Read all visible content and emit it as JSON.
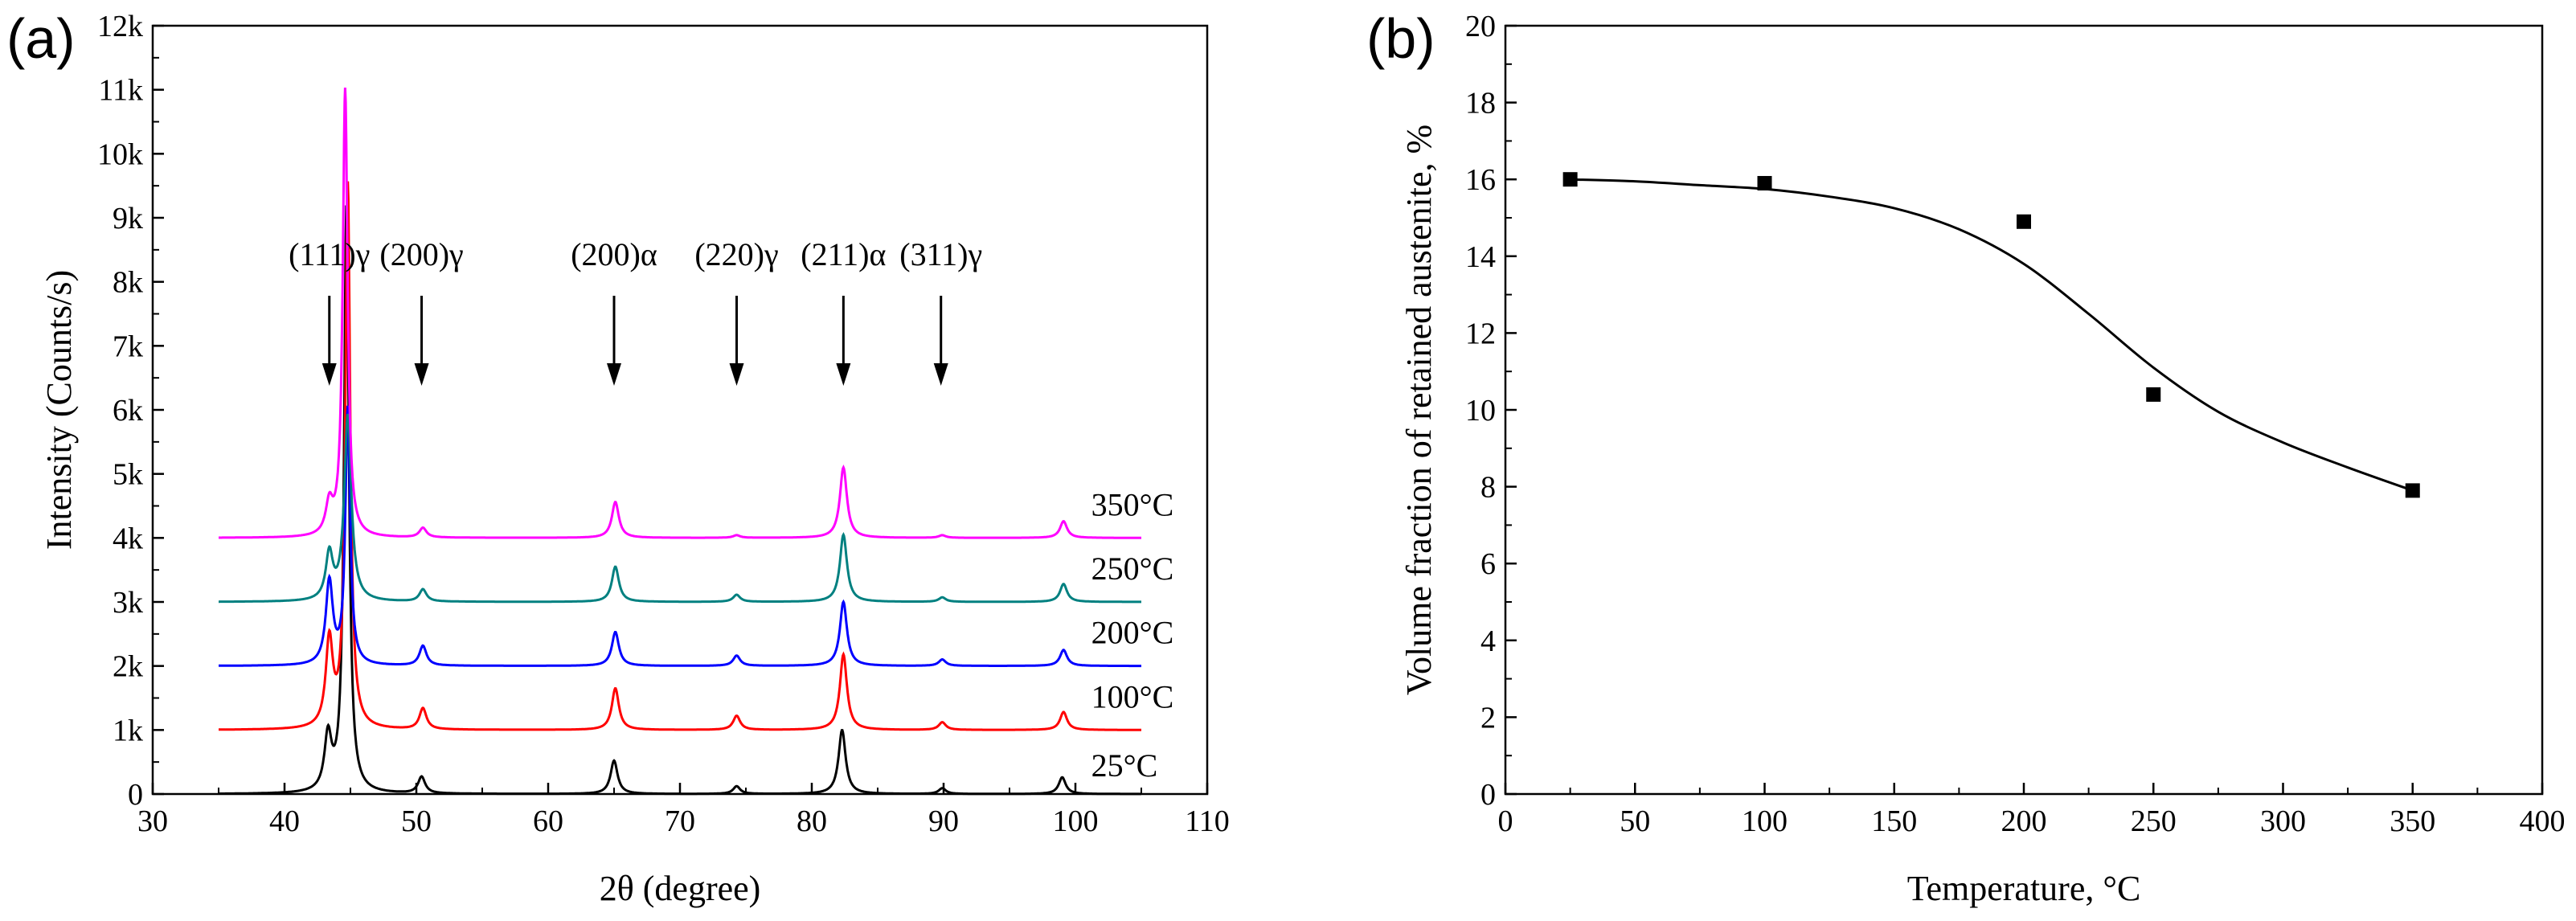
{
  "chart_data": [
    {
      "panel_label": "(a)",
      "type": "line",
      "xlabel": "2θ (degree)",
      "ylabel": "Intensity (Counts/s)",
      "xlim": [
        30,
        110
      ],
      "ylim": [
        0,
        12000
      ],
      "x_ticks": [
        "30",
        "40",
        "50",
        "60",
        "70",
        "80",
        "90",
        "100",
        "110"
      ],
      "y_ticks": [
        "0",
        "1k",
        "2k",
        "3k",
        "4k",
        "5k",
        "6k",
        "7k",
        "8k",
        "9k",
        "10k",
        "11k",
        "12k"
      ],
      "x_range_measured": [
        35,
        105
      ],
      "peak_annotations": [
        {
          "label": "(111)γ",
          "x": 43.4
        },
        {
          "label": "(200)γ",
          "x": 50.4
        },
        {
          "label": "(200)α",
          "x": 65.0
        },
        {
          "label": "(220)γ",
          "x": 74.3
        },
        {
          "label": "(211)α",
          "x": 82.4
        },
        {
          "label": "(311)γ",
          "x": 89.8
        }
      ],
      "series": [
        {
          "name": "25°C",
          "color": "#000000",
          "offset": 0,
          "peaks": [
            [
              43.3,
              850
            ],
            [
              44.7,
              9200
            ],
            [
              50.4,
              260
            ],
            [
              65.0,
              520
            ],
            [
              74.3,
              120
            ],
            [
              82.3,
              1000
            ],
            [
              89.9,
              90
            ],
            [
              99.0,
              260
            ]
          ]
        },
        {
          "name": "100°C",
          "color": "#ff0000",
          "offset": 1000,
          "peaks": [
            [
              43.4,
              1350
            ],
            [
              44.8,
              8500
            ],
            [
              50.5,
              330
            ],
            [
              65.1,
              650
            ],
            [
              74.3,
              220
            ],
            [
              82.4,
              1180
            ],
            [
              89.9,
              120
            ],
            [
              99.1,
              280
            ]
          ]
        },
        {
          "name": "200°C",
          "color": "#0000ff",
          "offset": 2000,
          "peaks": [
            [
              43.4,
              1300
            ],
            [
              44.8,
              4000
            ],
            [
              50.5,
              310
            ],
            [
              65.1,
              530
            ],
            [
              74.3,
              160
            ],
            [
              82.4,
              1000
            ],
            [
              89.9,
              100
            ],
            [
              99.1,
              250
            ]
          ]
        },
        {
          "name": "250°C",
          "color": "#008080",
          "offset": 3000,
          "peaks": [
            [
              43.4,
              720
            ],
            [
              44.8,
              2900
            ],
            [
              50.5,
              190
            ],
            [
              65.1,
              550
            ],
            [
              74.3,
              110
            ],
            [
              82.4,
              1050
            ],
            [
              89.9,
              70
            ],
            [
              99.1,
              280
            ]
          ]
        },
        {
          "name": "350°C",
          "color": "#ff00ff",
          "offset": 4000,
          "peaks": [
            [
              43.4,
              480
            ],
            [
              44.6,
              7000
            ],
            [
              50.5,
              150
            ],
            [
              65.1,
              560
            ],
            [
              74.3,
              40
            ],
            [
              82.4,
              1100
            ],
            [
              89.9,
              40
            ],
            [
              99.1,
              260
            ]
          ]
        }
      ]
    },
    {
      "panel_label": "(b)",
      "type": "scatter",
      "xlabel": "Temperature, °C",
      "ylabel": "Volume fraction of retained austenite, %",
      "xlim": [
        0,
        400
      ],
      "ylim": [
        0,
        20
      ],
      "x_ticks": [
        "0",
        "50",
        "100",
        "150",
        "200",
        "250",
        "300",
        "350",
        "400"
      ],
      "y_ticks": [
        "0",
        "2",
        "4",
        "6",
        "8",
        "10",
        "12",
        "14",
        "16",
        "18",
        "20"
      ],
      "points": {
        "x": [
          25,
          100,
          200,
          250,
          350
        ],
        "y": [
          16.0,
          15.9,
          14.9,
          10.4,
          7.9
        ]
      },
      "fit_curve": {
        "x": [
          25,
          50,
          75,
          100,
          125,
          150,
          175,
          200,
          225,
          250,
          275,
          300,
          325,
          350
        ],
        "y": [
          16.0,
          15.95,
          15.85,
          15.75,
          15.55,
          15.25,
          14.7,
          13.8,
          12.5,
          11.1,
          9.95,
          9.15,
          8.5,
          7.9
        ]
      }
    }
  ]
}
